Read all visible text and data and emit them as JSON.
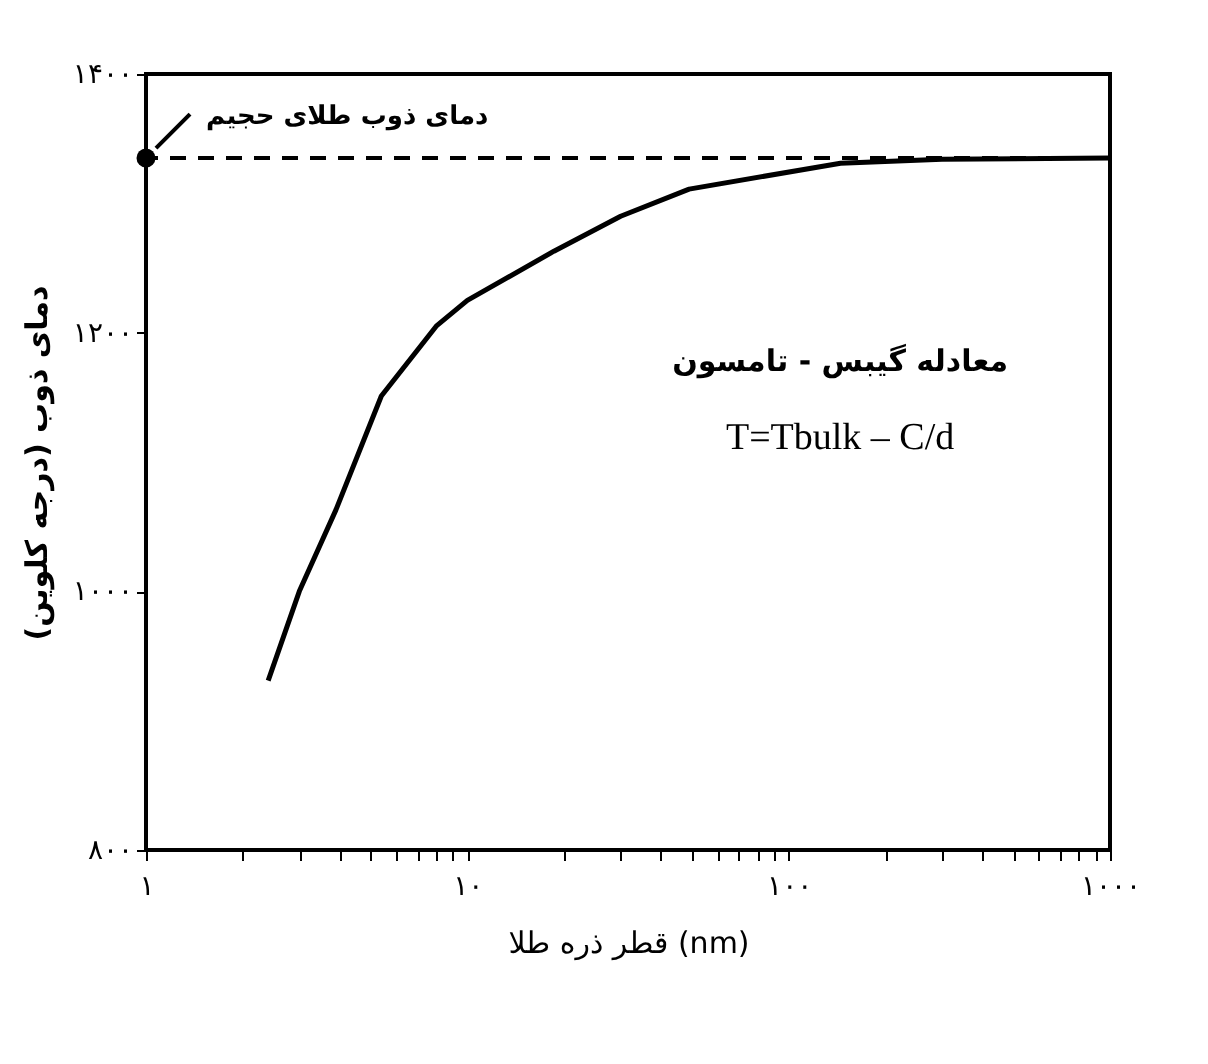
{
  "chart_data": {
    "type": "line",
    "xlabel": "قطر ذره طلا (nm)",
    "ylabel": "دمای ذوب (درجه کلوین)",
    "log": "x",
    "grid": false,
    "xlim": [
      1,
      1000
    ],
    "ylim": [
      800,
      1400
    ],
    "xticks": [
      {
        "value": 1,
        "label": "۱"
      },
      {
        "value": 2,
        "label": null
      },
      {
        "value": 3,
        "label": null
      },
      {
        "value": 4,
        "label": null
      },
      {
        "value": 5,
        "label": null
      },
      {
        "value": 6,
        "label": null
      },
      {
        "value": 7,
        "label": null
      },
      {
        "value": 8,
        "label": null
      },
      {
        "value": 9,
        "label": null
      },
      {
        "value": 10,
        "label": "۱۰"
      },
      {
        "value": 20,
        "label": null
      },
      {
        "value": 30,
        "label": null
      },
      {
        "value": 40,
        "label": null
      },
      {
        "value": 50,
        "label": null
      },
      {
        "value": 60,
        "label": null
      },
      {
        "value": 70,
        "label": null
      },
      {
        "value": 80,
        "label": null
      },
      {
        "value": 90,
        "label": null
      },
      {
        "value": 100,
        "label": "۱۰۰"
      },
      {
        "value": 200,
        "label": null
      },
      {
        "value": 300,
        "label": null
      },
      {
        "value": 400,
        "label": null
      },
      {
        "value": 500,
        "label": null
      },
      {
        "value": 600,
        "label": null
      },
      {
        "value": 700,
        "label": null
      },
      {
        "value": 800,
        "label": null
      },
      {
        "value": 900,
        "label": null
      },
      {
        "value": 1000,
        "label": "۱۰۰۰"
      }
    ],
    "yticks": [
      {
        "value": 800,
        "label": "۸۰۰"
      },
      {
        "value": 1000,
        "label": "۱۰۰۰"
      },
      {
        "value": 1200,
        "label": "۱۲۰۰"
      },
      {
        "value": 1400,
        "label": "۱۴۰۰"
      }
    ],
    "series": [
      {
        "color": "#000000",
        "line_style": "solid",
        "x": [
          2.4,
          3,
          3.9,
          5.4,
          8,
          10,
          18.6,
          30,
          49,
          145,
          300,
          1000
        ],
        "values": [
          931,
          1000,
          1063,
          1151,
          1205,
          1225,
          1263,
          1290,
          1311,
          1331,
          1334,
          1335
        ]
      },
      {
        "type": "scatter",
        "color": "#000000",
        "marker": "circle",
        "x": [
          1
        ],
        "values": [
          1335
        ]
      }
    ],
    "ref_lines": [
      {
        "axis": "y",
        "value": 1335,
        "line_style": "dashed",
        "color": "#000000",
        "label": "دمای ذوب طلای حجیم"
      }
    ],
    "annotations": [
      "معادله گیبس - تامسون",
      "T=Tbulk – C/d"
    ]
  }
}
